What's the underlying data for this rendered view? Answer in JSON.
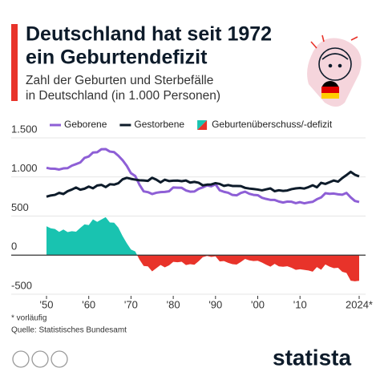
{
  "chart_data": {
    "type": "line",
    "title": [
      "Deutschland hat seit 1972",
      "ein Geburtendefizit"
    ],
    "subtitle": [
      "Zahl der Geburten und Sterbefälle",
      "in Deutschland (in 1.000 Personen)"
    ],
    "x": [
      1950,
      1951,
      1952,
      1953,
      1954,
      1955,
      1956,
      1957,
      1958,
      1959,
      1960,
      1961,
      1962,
      1963,
      1964,
      1965,
      1966,
      1967,
      1968,
      1969,
      1970,
      1971,
      1972,
      1973,
      1974,
      1975,
      1976,
      1977,
      1978,
      1979,
      1980,
      1981,
      1982,
      1983,
      1984,
      1985,
      1986,
      1987,
      1988,
      1989,
      1990,
      1991,
      1992,
      1993,
      1994,
      1995,
      1996,
      1997,
      1998,
      1999,
      2000,
      2001,
      2002,
      2003,
      2004,
      2005,
      2006,
      2007,
      2008,
      2009,
      2010,
      2011,
      2012,
      2013,
      2014,
      2015,
      2016,
      2017,
      2018,
      2019,
      2020,
      2021,
      2022,
      2023,
      2024
    ],
    "series": [
      {
        "name": "Geborene",
        "color": "#8e5fd6",
        "values": [
          1117,
          1106,
          1105,
          1095,
          1110,
          1113,
          1145,
          1165,
          1186,
          1244,
          1262,
          1313,
          1317,
          1355,
          1357,
          1325,
          1318,
          1272,
          1215,
          1142,
          1048,
          1013,
          901,
          816,
          806,
          782,
          798,
          806,
          809,
          817,
          866,
          863,
          861,
          828,
          812,
          814,
          848,
          867,
          892,
          881,
          906,
          830,
          810,
          798,
          770,
          765,
          796,
          812,
          785,
          771,
          767,
          734,
          719,
          707,
          706,
          686,
          673,
          685,
          683,
          665,
          678,
          663,
          674,
          682,
          715,
          738,
          792,
          785,
          788,
          778,
          773,
          796,
          739,
          693,
          680
        ]
      },
      {
        "name": "Gestorbene",
        "color": "#0d1b2a",
        "values": [
          748,
          763,
          771,
          797,
          782,
          818,
          839,
          865,
          837,
          850,
          877,
          855,
          891,
          899,
          871,
          907,
          902,
          920,
          970,
          989,
          976,
          966,
          958,
          955,
          950,
          990,
          965,
          931,
          965,
          948,
          952,
          954,
          946,
          955,
          928,
          937,
          926,
          893,
          902,
          904,
          921,
          911,
          886,
          897,
          885,
          885,
          883,
          861,
          852,
          846,
          839,
          829,
          842,
          854,
          818,
          830,
          822,
          827,
          844,
          854,
          859,
          852,
          870,
          894,
          868,
          925,
          911,
          933,
          955,
          940,
          986,
          1024,
          1066,
          1028,
          1008
        ]
      },
      {
        "name": "Geburtenüberschuss/-defizit",
        "type": "area",
        "color": "#19c3b0",
        "negative_color": "#e8332a",
        "values": [
          369,
          343,
          334,
          298,
          328,
          295,
          306,
          300,
          349,
          394,
          385,
          458,
          426,
          456,
          486,
          418,
          416,
          352,
          245,
          153,
          72,
          47,
          -57,
          -139,
          -144,
          -208,
          -167,
          -125,
          -156,
          -131,
          -86,
          -91,
          -85,
          -127,
          -116,
          -123,
          -78,
          -26,
          -10,
          -23,
          -15,
          -81,
          -76,
          -99,
          -115,
          -120,
          -87,
          -49,
          -67,
          -75,
          -72,
          -95,
          -123,
          -147,
          -112,
          -144,
          -149,
          -142,
          -161,
          -189,
          -181,
          -189,
          -196,
          -212,
          -153,
          -187,
          -119,
          -148,
          -167,
          -162,
          -213,
          -228,
          -327,
          -335,
          -328
        ]
      }
    ],
    "xlim": [
      1950,
      2024
    ],
    "xticks": [
      {
        "value": 1950,
        "label": "'50"
      },
      {
        "value": 1960,
        "label": "'60"
      },
      {
        "value": 1970,
        "label": "'70"
      },
      {
        "value": 1980,
        "label": "'80"
      },
      {
        "value": 1990,
        "label": "'90"
      },
      {
        "value": 2000,
        "label": "'00"
      },
      {
        "value": 2010,
        "label": "'10"
      },
      {
        "value": 2024,
        "label": "2024*"
      }
    ],
    "ylim": [
      -500,
      1500
    ],
    "yticks": [
      {
        "value": 1500,
        "label": "1.500"
      },
      {
        "value": 1000,
        "label": "1.000"
      },
      500,
      0,
      -500
    ],
    "grid": true,
    "footnote": "* vorläufig",
    "source": "Quelle: Statistisches Bundesamt",
    "brand": "statista"
  }
}
